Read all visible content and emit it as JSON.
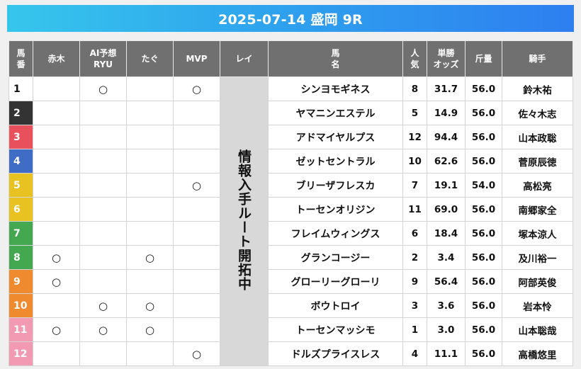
{
  "title": "2025-07-14 盛岡 9R",
  "headers": {
    "num": [
      "馬",
      "番"
    ],
    "akagi": "赤木",
    "ai": [
      "AI予想",
      "RYU"
    ],
    "tagu": "たぐ",
    "mvp": "MVP",
    "rei": "レイ",
    "horse": [
      "馬",
      "名"
    ],
    "pop": [
      "人",
      "気"
    ],
    "odds": [
      "単勝",
      "オッズ"
    ],
    "weight": "斤量",
    "jockey": "騎手"
  },
  "rei_text": "情報入手ルート開拓中",
  "mark_symbol": "○",
  "rows": [
    {
      "num": "1",
      "color": "#ffffff",
      "text_color": "#111111",
      "akagi": "",
      "ai": "○",
      "tagu": "",
      "mvp": "○",
      "horse": "シンヨモギネス",
      "pop": "8",
      "odds": "31.7",
      "weight": "56.0",
      "jockey": "鈴木祐"
    },
    {
      "num": "2",
      "color": "#333333",
      "text_color": "#ffffff",
      "akagi": "",
      "ai": "",
      "tagu": "",
      "mvp": "",
      "horse": "ヤマニンエステル",
      "pop": "5",
      "odds": "14.9",
      "weight": "56.0",
      "jockey": "佐々木志"
    },
    {
      "num": "3",
      "color": "#e8505b",
      "text_color": "#ffffff",
      "akagi": "",
      "ai": "",
      "tagu": "",
      "mvp": "",
      "horse": "アドマイヤルプス",
      "pop": "12",
      "odds": "94.4",
      "weight": "56.0",
      "jockey": "山本政聡"
    },
    {
      "num": "4",
      "color": "#3f6cc4",
      "text_color": "#ffffff",
      "akagi": "",
      "ai": "",
      "tagu": "",
      "mvp": "",
      "horse": "ゼットセントラル",
      "pop": "10",
      "odds": "62.6",
      "weight": "56.0",
      "jockey": "菅原辰徳"
    },
    {
      "num": "5",
      "color": "#e8c221",
      "text_color": "#ffffff",
      "akagi": "",
      "ai": "",
      "tagu": "",
      "mvp": "○",
      "horse": "ブリーザフレスカ",
      "pop": "7",
      "odds": "19.1",
      "weight": "54.0",
      "jockey": "高松亮"
    },
    {
      "num": "6",
      "color": "#e8c221",
      "text_color": "#ffffff",
      "akagi": "",
      "ai": "",
      "tagu": "",
      "mvp": "",
      "horse": "トーセンオリジン",
      "pop": "11",
      "odds": "69.0",
      "weight": "56.0",
      "jockey": "南郷家全"
    },
    {
      "num": "7",
      "color": "#43a84f",
      "text_color": "#ffffff",
      "akagi": "",
      "ai": "",
      "tagu": "",
      "mvp": "",
      "horse": "フレイムウィングス",
      "pop": "6",
      "odds": "18.4",
      "weight": "56.0",
      "jockey": "塚本涼人"
    },
    {
      "num": "8",
      "color": "#43a84f",
      "text_color": "#ffffff",
      "akagi": "○",
      "ai": "",
      "tagu": "○",
      "mvp": "",
      "horse": "グランコージー",
      "pop": "2",
      "odds": "3.4",
      "weight": "56.0",
      "jockey": "及川裕一"
    },
    {
      "num": "9",
      "color": "#ef8a2e",
      "text_color": "#ffffff",
      "akagi": "○",
      "ai": "",
      "tagu": "",
      "mvp": "",
      "horse": "グローリーグローリ",
      "pop": "9",
      "odds": "56.4",
      "weight": "56.0",
      "jockey": "阿部英俊"
    },
    {
      "num": "10",
      "color": "#ef8a2e",
      "text_color": "#ffffff",
      "akagi": "",
      "ai": "○",
      "tagu": "○",
      "mvp": "",
      "horse": "ボウトロイ",
      "pop": "3",
      "odds": "3.6",
      "weight": "56.0",
      "jockey": "岩本怜"
    },
    {
      "num": "11",
      "color": "#f29ab1",
      "text_color": "#ffffff",
      "akagi": "○",
      "ai": "○",
      "tagu": "○",
      "mvp": "",
      "horse": "トーセンマッシモ",
      "pop": "1",
      "odds": "3.0",
      "weight": "56.0",
      "jockey": "山本聡哉"
    },
    {
      "num": "12",
      "color": "#f29ab1",
      "text_color": "#ffffff",
      "akagi": "",
      "ai": "",
      "tagu": "",
      "mvp": "○",
      "horse": "ドルズプライスレス",
      "pop": "4",
      "odds": "11.1",
      "weight": "56.0",
      "jockey": "高橋悠里"
    }
  ]
}
